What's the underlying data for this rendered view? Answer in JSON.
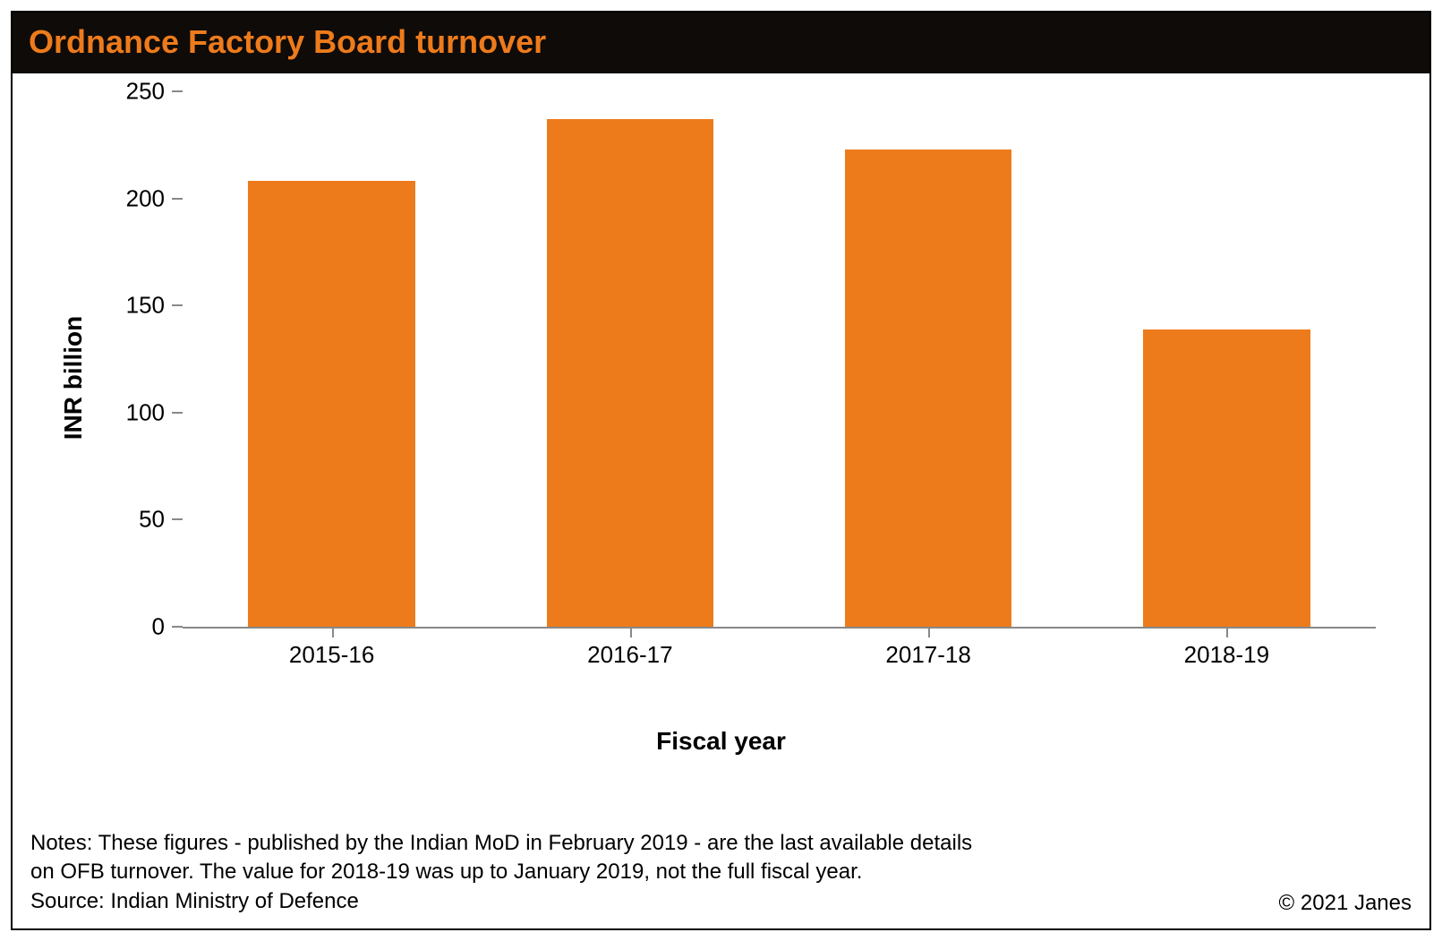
{
  "title": "Ordnance Factory Board turnover",
  "chart": {
    "type": "bar",
    "ylabel": "INR billion",
    "xlabel": "Fiscal year",
    "categories": [
      "2015-16",
      "2016-17",
      "2017-18",
      "2018-19"
    ],
    "values": [
      208,
      237,
      223,
      139
    ],
    "bar_color": "#ed7b1c",
    "axis_color": "#888888",
    "ylim_min": 0,
    "ylim_max": 250,
    "ytick_step": 50,
    "yticks": [
      0,
      50,
      100,
      150,
      200,
      250
    ],
    "background_color": "#ffffff",
    "title_color": "#ed7b1c",
    "title_bg": "#0f0b08",
    "label_fontsize": 28,
    "tick_fontsize": 26,
    "bar_width_ratio": 0.56
  },
  "notes_line1": "Notes: These figures - published by the Indian MoD in February 2019 - are the last available details",
  "notes_line2": "on OFB turnover. The value for 2018-19 was up to January 2019, not the full fiscal year.",
  "source": "Source: Indian Ministry of Defence",
  "copyright": "© 2021 Janes"
}
